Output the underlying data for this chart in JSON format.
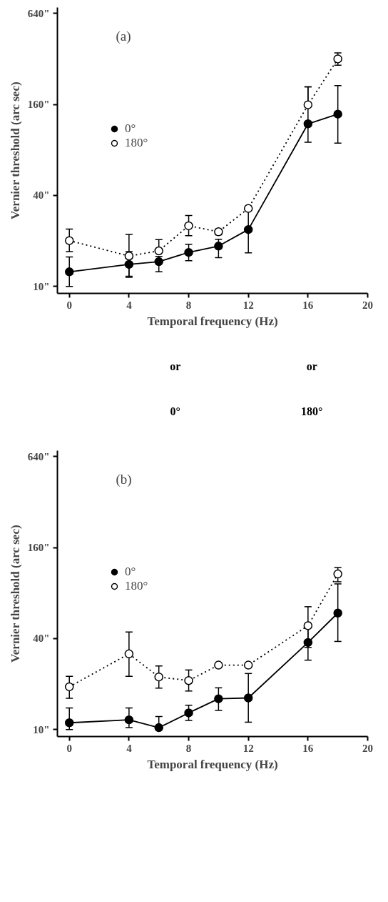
{
  "chart_data": [
    {
      "type": "line",
      "title": "(a)",
      "xlabel": "Temporal frequency (Hz)",
      "ylabel": "Vernier threshold (arc sec)",
      "log": true,
      "xlim": [
        -0.8,
        20
      ],
      "ylim": [
        9,
        700
      ],
      "xticks": [
        0,
        4,
        8,
        12,
        16,
        20
      ],
      "yticks": [
        {
          "value": 10,
          "label": "10\""
        },
        {
          "value": 40,
          "label": "40\""
        },
        {
          "value": 160,
          "label": "160\""
        },
        {
          "value": 640,
          "label": "640\""
        }
      ],
      "grid": false,
      "legend": "left",
      "marker": "circle",
      "x": [
        0,
        4,
        6,
        8,
        10,
        12,
        16,
        18
      ],
      "series": [
        {
          "name": "0°",
          "color": "#000000",
          "line_style": "solid",
          "values": [
            12.5,
            14,
            14.6,
            16.8,
            18.5,
            23.8,
            119,
            138
          ],
          "errors": [
            [
              10,
              15.7
            ],
            [
              11.5,
              17
            ],
            [
              12.5,
              15.8
            ],
            [
              14.8,
              19
            ],
            [
              15.5,
              20.5
            ],
            [
              16.7,
              32.2
            ],
            [
              90,
              209
            ],
            [
              88.7,
              213
            ]
          ]
        },
        {
          "name": "180°",
          "color": "#000000",
          "colors": [
            "#ffffff",
            "#ffffff",
            "#ffffff",
            "#ffffff",
            "#ffffff",
            "#ffffff",
            "#ffffff",
            "#ffffff"
          ],
          "line_style": "dotted",
          "values": [
            20.1,
            15.9,
            17.2,
            25.2,
            23,
            32.8,
            159,
            320
          ],
          "errors": [
            [
              17,
              24
            ],
            [
              11.7,
              22.1
            ],
            [
              17.2,
              20.4
            ],
            [
              21.7,
              29.5
            ],
            [
              22,
              24
            ],
            null,
            [
              159,
              209
            ],
            [
              291,
              351
            ]
          ]
        }
      ],
      "annotations": [
        "or",
        "or",
        "0°",
        "180°"
      ]
    },
    {
      "type": "line",
      "title": "(b)",
      "xlabel": "Temporal frequency (Hz)",
      "ylabel": "Vernier threshold (arc sec)",
      "log": true,
      "xlim": [
        -0.8,
        20
      ],
      "ylim": [
        9,
        700
      ],
      "xticks": [
        0,
        4,
        8,
        12,
        16,
        20
      ],
      "yticks": [
        {
          "value": 10,
          "label": "10\""
        },
        {
          "value": 40,
          "label": "40\""
        },
        {
          "value": 160,
          "label": "160\""
        },
        {
          "value": 640,
          "label": "640\""
        }
      ],
      "grid": false,
      "legend": "left",
      "marker": "circle",
      "x": [
        0,
        4,
        6,
        8,
        10,
        12,
        16,
        18
      ],
      "series": [
        {
          "name": "0°",
          "color": "#000000",
          "line_style": "solid",
          "values": [
            11.1,
            11.6,
            10.3,
            12.9,
            16,
            16.2,
            37.7,
            59
          ],
          "errors": [
            [
              10,
              13.9
            ],
            [
              10.3,
              13.9
            ],
            [
              10,
              12.2
            ],
            [
              11.5,
              14.5
            ],
            [
              13.4,
              18.9
            ],
            [
              11.2,
              23.5
            ],
            [
              28.8,
              48.1
            ],
            [
              38.3,
              92
            ]
          ]
        },
        {
          "name": "180°",
          "color": "#000000",
          "colors": [
            "#ffffff",
            "#ffffff",
            "#ffffff",
            "#ffffff",
            "#ffffff",
            "#ffffff",
            "#ffffff",
            "#ffffff"
          ],
          "line_style": "dotted",
          "values": [
            19.2,
            31.7,
            22.3,
            21.1,
            26.7,
            26.7,
            48.7,
            107
          ],
          "errors": [
            [
              16.1,
              22.5
            ],
            [
              22.5,
              44.2
            ],
            [
              18.8,
              26.4
            ],
            [
              18,
              24.8
            ],
            null,
            null,
            [
              35,
              65
            ],
            [
              95,
              118
            ]
          ]
        }
      ]
    }
  ]
}
